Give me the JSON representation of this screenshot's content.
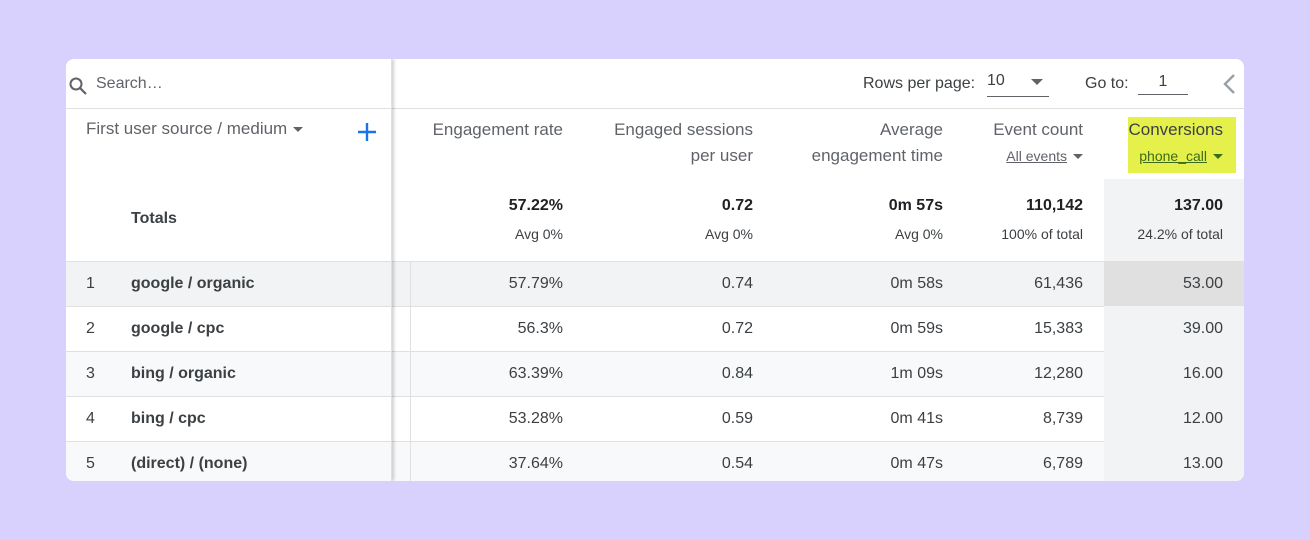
{
  "search": {
    "placeholder": "Search…"
  },
  "dimension": {
    "header": "First user source / medium"
  },
  "pagination": {
    "rows_per_page_label": "Rows per page:",
    "rows_per_page_value": "10",
    "goto_label": "Go to:",
    "goto_value": "1"
  },
  "columns": [
    {
      "line1": "Engagement rate",
      "line2": ""
    },
    {
      "line1": "Engaged sessions",
      "line2": "per user"
    },
    {
      "line1": "Average",
      "line2": "engagement time"
    },
    {
      "line1": "Event count",
      "line2": "All events"
    },
    {
      "line1": "Conversions",
      "line2": "phone_call"
    }
  ],
  "totals": {
    "label": "Totals",
    "values": [
      "57.22%",
      "0.72",
      "0m 57s",
      "110,142",
      "137.00"
    ],
    "subs": [
      "Avg 0%",
      "Avg 0%",
      "Avg 0%",
      "100% of total",
      "24.2% of total"
    ]
  },
  "rows": [
    {
      "num": "1",
      "label": "google / organic",
      "values": [
        "57.79%",
        "0.74",
        "0m 58s",
        "61,436",
        "53.00"
      ]
    },
    {
      "num": "2",
      "label": "google / cpc",
      "values": [
        "56.3%",
        "0.72",
        "0m 59s",
        "15,383",
        "39.00"
      ]
    },
    {
      "num": "3",
      "label": "bing / organic",
      "values": [
        "63.39%",
        "0.84",
        "1m 09s",
        "12,280",
        "16.00"
      ]
    },
    {
      "num": "4",
      "label": "bing / cpc",
      "values": [
        "53.28%",
        "0.59",
        "0m 41s",
        "8,739",
        "12.00"
      ]
    },
    {
      "num": "5",
      "label": "(direct) / (none)",
      "values": [
        "37.64%",
        "0.54",
        "0m 47s",
        "6,789",
        "13.00"
      ]
    }
  ],
  "colors": {
    "background": "#d8d1fd",
    "highlight": "#e5f04b",
    "accent": "#1a73e8"
  }
}
